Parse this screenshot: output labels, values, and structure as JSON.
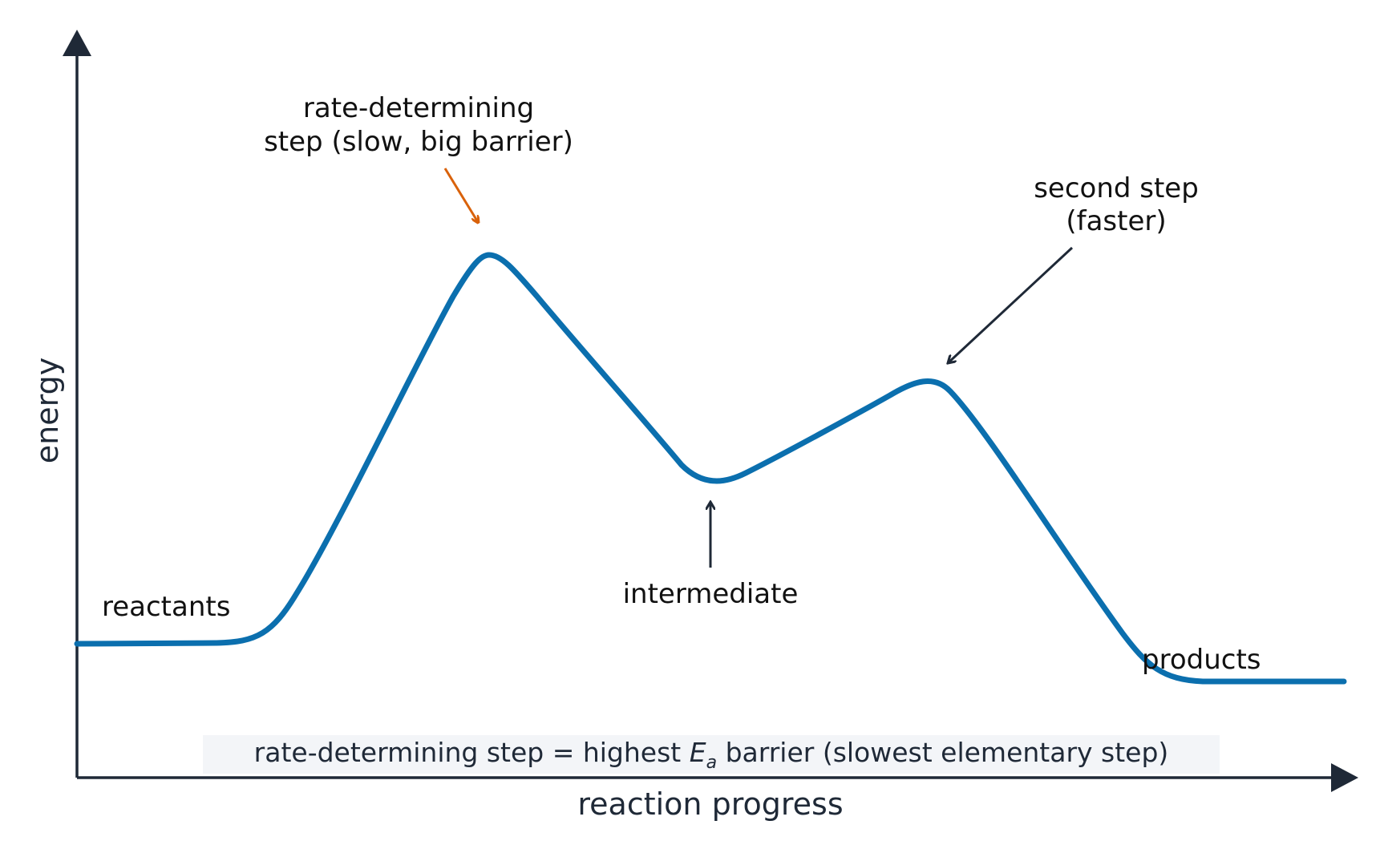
{
  "axes": {
    "y_label": "energy",
    "x_label": "reaction progress"
  },
  "curve": {
    "color": "#0b6fae"
  },
  "labels": {
    "reactants": "reactants",
    "products": "products",
    "intermediate": "intermediate",
    "rate_determining_line1": "rate-determining",
    "rate_determining_line2": "step (slow, big barrier)",
    "second_step_line1": "second step",
    "second_step_line2": "(faster)"
  },
  "caption": {
    "prefix": "rate-determining step = highest ",
    "symbol": "E",
    "subscript": "a",
    "suffix": " barrier (slowest elementary step)"
  },
  "colors": {
    "axis": "#1f2937",
    "rate_arrow": "#d9620b",
    "annotation_arrow": "#1f2937",
    "caption_bg": "#f3f5f8"
  }
}
